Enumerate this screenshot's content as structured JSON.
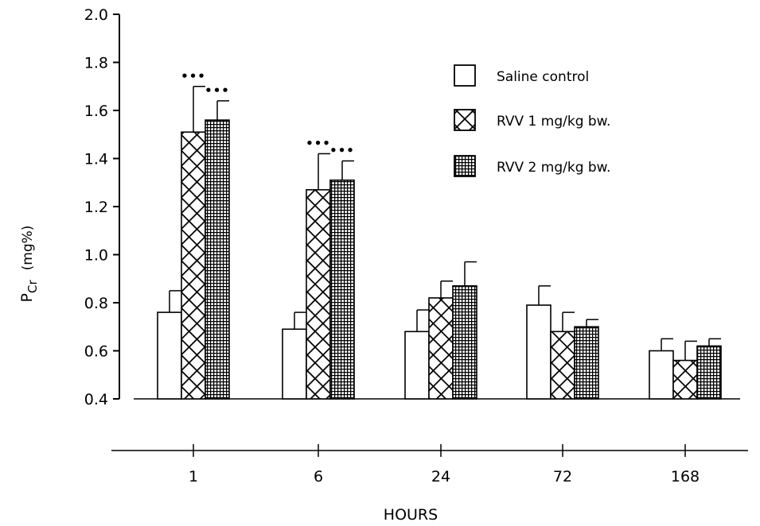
{
  "chart_data": {
    "type": "bar",
    "xlabel": "HOURS",
    "ylabel": "P",
    "ylabel_sub": "Cr",
    "ylabel_unit": "(mg%)",
    "ylim": [
      0.4,
      2.0
    ],
    "yticks": [
      "0.4",
      "0.6",
      "0.8",
      "1.0",
      "1.2",
      "1.4",
      "1.6",
      "1.8",
      "2.0"
    ],
    "categories": [
      "1",
      "6",
      "24",
      "72",
      "168"
    ],
    "series": [
      {
        "name": "Saline control",
        "pattern": "open",
        "values": [
          0.76,
          0.69,
          0.68,
          0.79,
          0.6
        ],
        "errors": [
          0.09,
          0.07,
          0.09,
          0.08,
          0.05
        ],
        "significance": [
          "",
          "",
          "",
          "",
          ""
        ]
      },
      {
        "name": "RVV 1 mg/kg bw.",
        "pattern": "crosshatch",
        "values": [
          1.51,
          1.27,
          0.82,
          0.68,
          0.56
        ],
        "errors": [
          0.19,
          0.15,
          0.07,
          0.08,
          0.08
        ],
        "significance": [
          "•••",
          "•••",
          "",
          "",
          ""
        ]
      },
      {
        "name": "RVV 2 mg/kg bw.",
        "pattern": "grid",
        "values": [
          1.56,
          1.31,
          0.87,
          0.7,
          0.62
        ],
        "errors": [
          0.08,
          0.08,
          0.1,
          0.03,
          0.03
        ],
        "significance": [
          "•••",
          "•••",
          "",
          "",
          ""
        ]
      }
    ],
    "grid": false,
    "legend_position": "top-right",
    "colors": {
      "bar_fill": "#ffffff",
      "stroke": "#000000",
      "background": "#ffffff"
    }
  }
}
